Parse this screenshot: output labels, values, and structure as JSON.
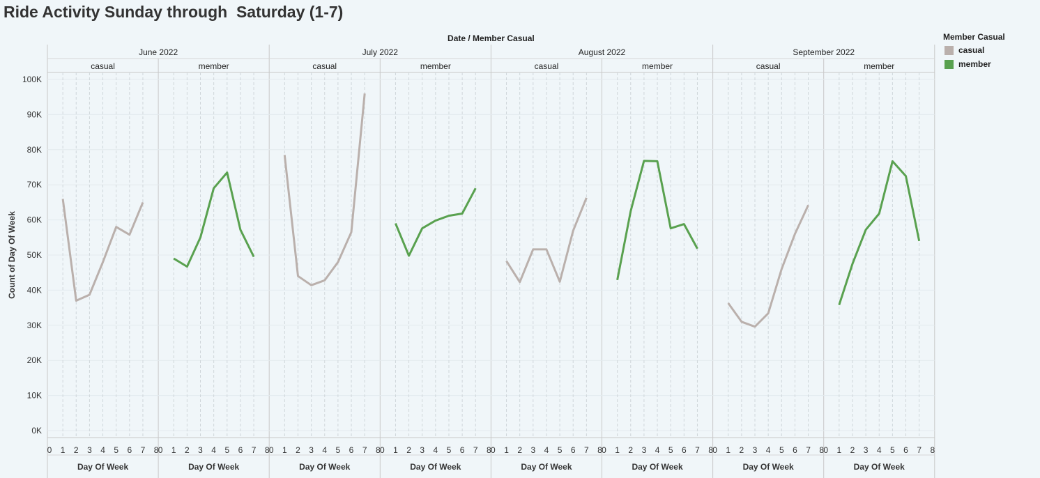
{
  "title": "Ride Activity Sunday through  Saturday (1-7)",
  "legend": {
    "title": "Member Casual",
    "items": [
      {
        "label": "casual",
        "color": "#bab0ac"
      },
      {
        "label": "member",
        "color": "#59a14f"
      }
    ]
  },
  "chart_data": {
    "type": "line",
    "header": "Date  /  Member Casual",
    "xlabel": "Day Of Week",
    "ylabel": "Count of Day Of Week",
    "x_ticks": [
      0,
      1,
      2,
      3,
      4,
      5,
      6,
      7,
      8
    ],
    "xlim": [
      0,
      8
    ],
    "y_ticks": [
      {
        "value": 0,
        "label": "0K"
      },
      {
        "value": 10000,
        "label": "10K"
      },
      {
        "value": 20000,
        "label": "20K"
      },
      {
        "value": 30000,
        "label": "30K"
      },
      {
        "value": 40000,
        "label": "40K"
      },
      {
        "value": 50000,
        "label": "50K"
      },
      {
        "value": 60000,
        "label": "60K"
      },
      {
        "value": 70000,
        "label": "70K"
      },
      {
        "value": 80000,
        "label": "80K"
      },
      {
        "value": 90000,
        "label": "90K"
      },
      {
        "value": 100000,
        "label": "100K"
      }
    ],
    "ylim": [
      0,
      100000
    ],
    "grid": "vertical dashed at each day",
    "legend_position": "top-right",
    "months": [
      {
        "label": "June 2022",
        "panels": [
          {
            "label": "casual",
            "series": "casual",
            "x": [
              1,
              2,
              3,
              4,
              5,
              6,
              7
            ],
            "y": [
              66000,
              37000,
              38700,
              48000,
              58000,
              55800,
              65000
            ]
          },
          {
            "label": "member",
            "series": "member",
            "x": [
              1,
              2,
              3,
              4,
              5,
              6,
              7
            ],
            "y": [
              49000,
              46700,
              55000,
              69000,
              73500,
              57200,
              49500
            ]
          }
        ]
      },
      {
        "label": "July 2022",
        "panels": [
          {
            "label": "casual",
            "series": "casual",
            "x": [
              1,
              2,
              3,
              4,
              5,
              6,
              7
            ],
            "y": [
              78500,
              44000,
              41400,
              42800,
              48000,
              56500,
              96000
            ]
          },
          {
            "label": "member",
            "series": "member",
            "x": [
              1,
              2,
              3,
              4,
              5,
              6,
              7
            ],
            "y": [
              59000,
              49800,
              57600,
              59800,
              61200,
              61800,
              69000
            ]
          }
        ]
      },
      {
        "label": "August 2022",
        "panels": [
          {
            "label": "casual",
            "series": "casual",
            "x": [
              1,
              2,
              3,
              4,
              5,
              6,
              7
            ],
            "y": [
              48300,
              42300,
              51600,
              51600,
              42400,
              56900,
              66300
            ]
          },
          {
            "label": "member",
            "series": "member",
            "x": [
              1,
              2,
              3,
              4,
              5,
              6,
              7
            ],
            "y": [
              42900,
              62500,
              76800,
              76700,
              57600,
              58800,
              51800
            ]
          }
        ]
      },
      {
        "label": "September 2022",
        "panels": [
          {
            "label": "casual",
            "series": "casual",
            "x": [
              1,
              2,
              3,
              4,
              5,
              6,
              7
            ],
            "y": [
              36300,
              31000,
              29600,
              33400,
              46000,
              56000,
              64200
            ]
          },
          {
            "label": "member",
            "series": "member",
            "x": [
              1,
              2,
              3,
              4,
              5,
              6,
              7
            ],
            "y": [
              35800,
              47500,
              57200,
              61800,
              76700,
              72500,
              54000
            ]
          }
        ]
      }
    ]
  }
}
